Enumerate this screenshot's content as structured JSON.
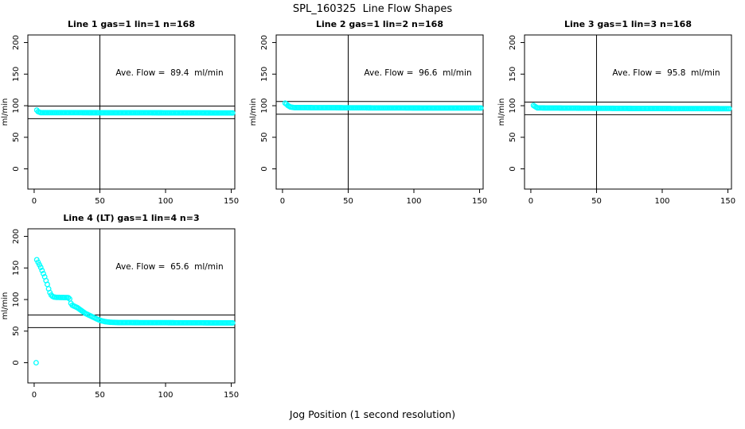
{
  "page_title": "SPL_160325  Line Flow Shapes",
  "xlabel": "Jog Position (1 second resolution)",
  "chart_data": {
    "type": "scatter",
    "title": "SPL_160325  Line Flow Shapes",
    "xlabel": "Jog Position (1 second resolution)",
    "ylabel": "ml/min",
    "point_color": "#00FFFF",
    "line_color": "#000000",
    "x_ticks": [
      0,
      50,
      100,
      150
    ],
    "y_ticks": [
      0,
      50,
      100,
      150,
      200
    ],
    "x_range": [
      -4.8,
      152.7
    ],
    "y_range": [
      -32,
      212
    ],
    "vline_x": 50,
    "x_step": 1,
    "plots": [
      {
        "title": "Line 1 gas=1 lin=1 n=168",
        "annotation": "Ave. Flow =  89.4  ml/min",
        "ave_flow": 89.4,
        "n": 168,
        "hlines": [
          99.4,
          79.4
        ],
        "x_start": 2,
        "x_end": 151,
        "profile": [
          [
            2,
            93
          ],
          [
            3,
            90.5
          ],
          [
            5,
            89
          ],
          [
            80,
            88.8
          ],
          [
            151,
            88.5
          ]
        ],
        "extra_points": []
      },
      {
        "title": "Line 2 gas=1 lin=2 n=168",
        "annotation": "Ave. Flow =  96.6  ml/min",
        "ave_flow": 96.6,
        "n": 168,
        "hlines": [
          106.6,
          86.6
        ],
        "x_start": 2,
        "x_end": 151,
        "profile": [
          [
            2,
            104
          ],
          [
            3,
            102.5
          ],
          [
            4,
            100.5
          ],
          [
            6,
            98
          ],
          [
            9,
            97
          ],
          [
            80,
            96.5
          ],
          [
            151,
            96.3
          ]
        ],
        "extra_points": []
      },
      {
        "title": "Line 3 gas=1 lin=3 n=168",
        "annotation": "Ave. Flow =  95.8  ml/min",
        "ave_flow": 95.8,
        "n": 168,
        "hlines": [
          105.8,
          85.8
        ],
        "x_start": 2,
        "x_end": 151,
        "profile": [
          [
            2,
            100.5
          ],
          [
            3,
            99
          ],
          [
            5,
            96.5
          ],
          [
            80,
            95.6
          ],
          [
            151,
            95.3
          ]
        ],
        "extra_points": []
      },
      {
        "title": "Line 4 (LT) gas=1 lin=4 n=3",
        "annotation": "Ave. Flow =  65.6  ml/min",
        "ave_flow": 65.6,
        "n": 3,
        "hlines": [
          75.6,
          55.6
        ],
        "x_start": 2,
        "x_end": 151,
        "profile": [
          [
            2,
            163
          ],
          [
            3,
            159
          ],
          [
            4,
            155
          ],
          [
            5,
            151
          ],
          [
            6,
            146
          ],
          [
            7,
            141
          ],
          [
            8,
            136
          ],
          [
            9,
            130
          ],
          [
            10,
            124
          ],
          [
            11,
            117
          ],
          [
            12,
            111
          ],
          [
            13,
            107
          ],
          [
            14,
            105
          ],
          [
            15,
            104
          ],
          [
            17,
            103.5
          ],
          [
            26,
            103
          ],
          [
            27,
            101
          ],
          [
            28,
            94
          ],
          [
            29,
            91
          ],
          [
            31,
            89
          ],
          [
            33,
            87
          ],
          [
            35,
            84
          ],
          [
            37,
            81
          ],
          [
            39,
            78
          ],
          [
            41,
            76
          ],
          [
            43,
            74
          ],
          [
            45,
            72
          ],
          [
            47,
            70
          ],
          [
            49,
            68
          ],
          [
            51,
            66.5
          ],
          [
            54,
            65
          ],
          [
            58,
            64
          ],
          [
            65,
            63.5
          ],
          [
            151,
            63
          ]
        ],
        "extra_points": [
          [
            1.5,
            0
          ]
        ]
      }
    ]
  }
}
